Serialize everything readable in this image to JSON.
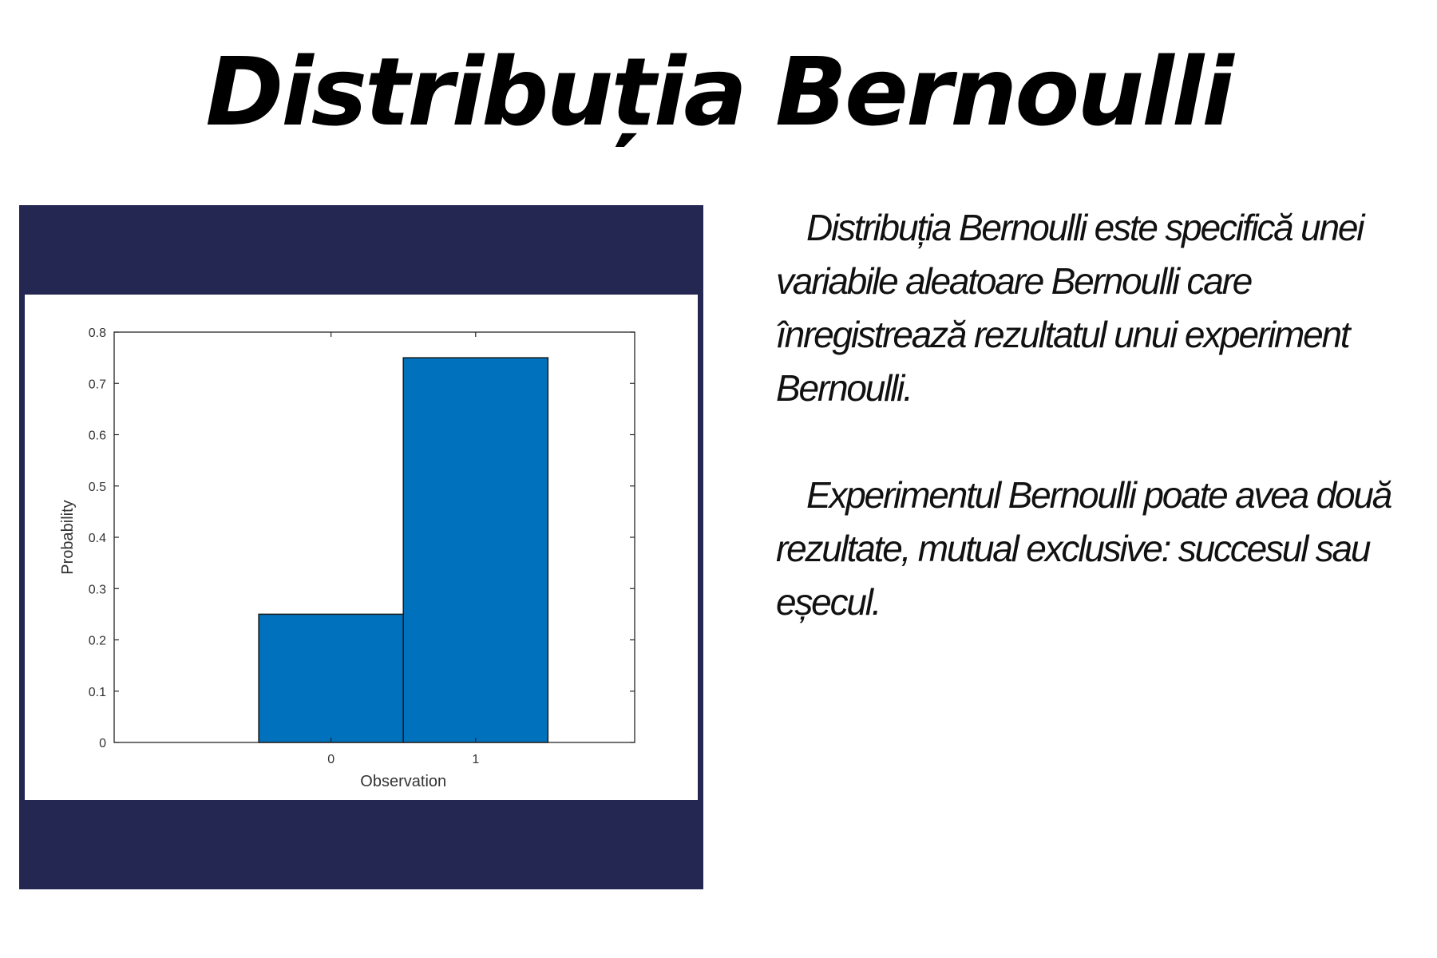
{
  "slide": {
    "title": "Distribuția Bernoulli",
    "paragraphs": [
      "Distribuția Bernoulli este specifică unei variabile aleatoare Bernoulli care înregistrează rezultatul unui experiment Bernoulli.",
      "Experimentul Bernoulli poate avea două rezultate, mutual exclusive: succesul sau eșecul."
    ]
  },
  "colors": {
    "frame": "#232751",
    "bar_fill": "#0072BD",
    "bar_stroke": "#1a1a1a",
    "axis": "#262626"
  },
  "chart_data": {
    "type": "bar",
    "categories": [
      "0",
      "1"
    ],
    "values": [
      0.25,
      0.75
    ],
    "title": "",
    "xlabel": "Observation",
    "ylabel": "Probability",
    "xlim": [
      -1.5,
      2.1
    ],
    "ylim": [
      0,
      0.8
    ],
    "yticks": [
      0,
      0.1,
      0.2,
      0.3,
      0.4,
      0.5,
      0.6,
      0.7,
      0.8
    ],
    "ytick_labels": [
      "0",
      "0.1",
      "0.2",
      "0.3",
      "0.4",
      "0.5",
      "0.6",
      "0.7",
      "0.8"
    ],
    "bar_width": 1,
    "grid": false,
    "legend": "none"
  }
}
